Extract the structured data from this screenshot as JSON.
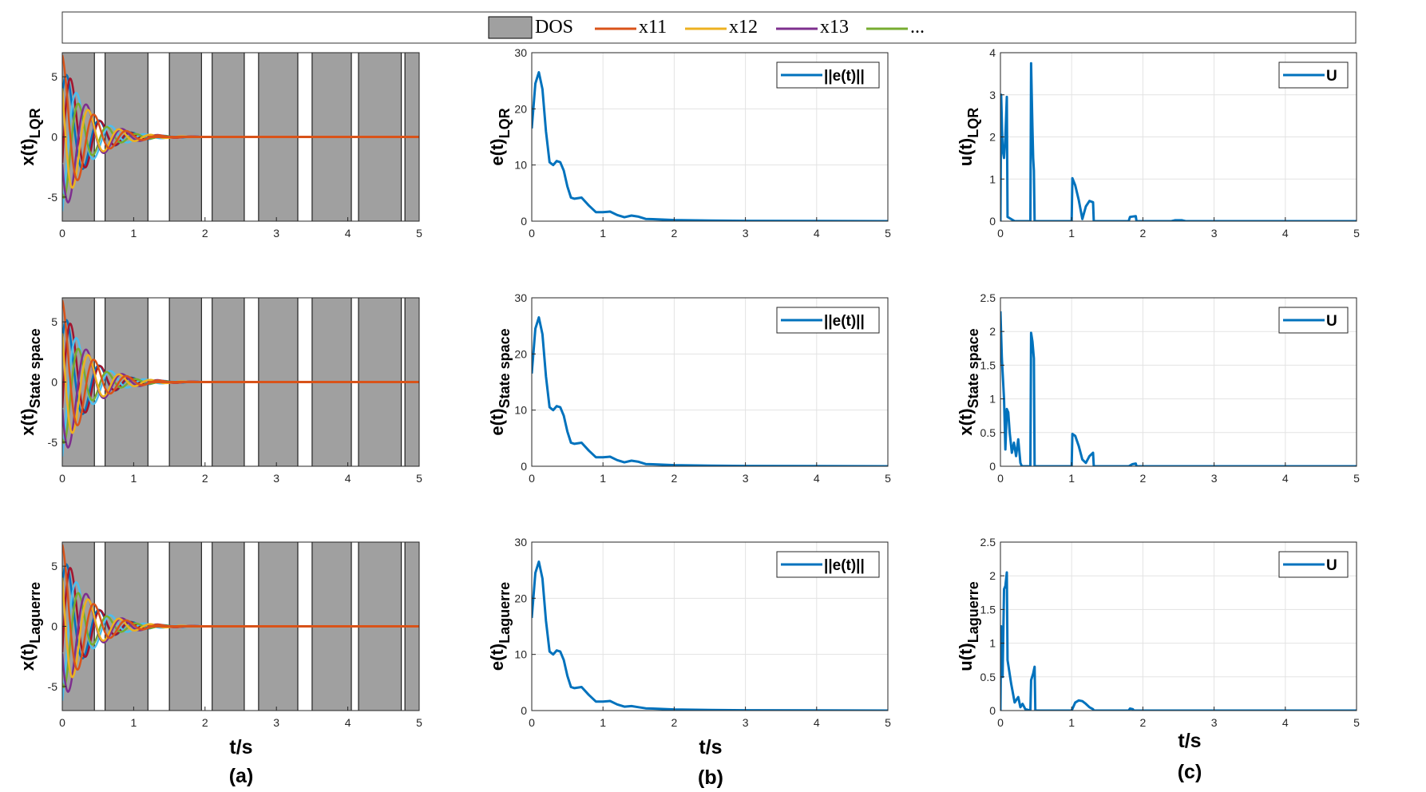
{
  "colors": {
    "dos": "#a0a0a0",
    "x11": "#d95319",
    "x12": "#edb120",
    "x13": "#7e2f8e",
    "x14": "#77ac30",
    "x15": "#4dbeee",
    "x16": "#a2142f",
    "x17": "#0072bd",
    "norm": "#0072bd",
    "grid": "#e3e3e3"
  },
  "legend": {
    "items": [
      {
        "label": "DOS",
        "kind": "patch"
      },
      {
        "label": "x11",
        "kind": "line",
        "color_key": "x11"
      },
      {
        "label": "x12",
        "kind": "line",
        "color_key": "x12"
      },
      {
        "label": "x13",
        "kind": "line",
        "color_key": "x13"
      },
      {
        "label": "...",
        "kind": "line",
        "color_key": "x14"
      }
    ]
  },
  "column_labels": {
    "x_label": "t/s",
    "a": "(a)",
    "b": "(b)",
    "c": "(c)"
  },
  "chart_data": [
    {
      "id": "x_lqr",
      "type": "line",
      "ylabel_main": "x(t)",
      "ylabel_sub": "LQR",
      "xlim": [
        0,
        5
      ],
      "ylim": [
        -7,
        7
      ],
      "xticks": [
        0,
        1,
        2,
        3,
        4,
        5
      ],
      "yticks": [
        -5,
        0,
        5
      ],
      "grid": false,
      "dos_windows": [
        [
          0,
          0.45
        ],
        [
          0.6,
          1.2
        ],
        [
          1.5,
          1.95
        ],
        [
          2.1,
          2.55
        ],
        [
          2.75,
          3.3
        ],
        [
          3.5,
          4.05
        ],
        [
          4.15,
          4.75
        ],
        [
          4.8,
          5.0
        ]
      ],
      "states": [
        {
          "name": "x11",
          "color_key": "x11",
          "amp": 6.8,
          "freq": 2.2,
          "phase": 0.0,
          "decay": 2.9
        },
        {
          "name": "x12",
          "color_key": "x12",
          "amp": 6.5,
          "freq": 2.3,
          "phase": 0.9,
          "decay": 2.9
        },
        {
          "name": "x13",
          "color_key": "x13",
          "amp": 7.0,
          "freq": 2.0,
          "phase": 1.9,
          "decay": 2.8
        },
        {
          "name": "x14",
          "color_key": "x14",
          "amp": 5.5,
          "freq": 2.5,
          "phase": 2.6,
          "decay": 3.0
        },
        {
          "name": "x15",
          "color_key": "x15",
          "amp": 6.6,
          "freq": 2.1,
          "phase": 3.5,
          "decay": 2.9
        },
        {
          "name": "x16",
          "color_key": "x16",
          "amp": 7.0,
          "freq": 2.4,
          "phase": 4.4,
          "decay": 3.1
        },
        {
          "name": "x17",
          "color_key": "x17",
          "amp": 6.2,
          "freq": 2.2,
          "phase": 5.3,
          "decay": 2.9
        }
      ]
    },
    {
      "id": "e_lqr",
      "type": "line",
      "ylabel_main": "e(t)",
      "ylabel_sub": "LQR",
      "legend_label": "||e(t)||",
      "xlim": [
        0,
        5
      ],
      "ylim": [
        0,
        30
      ],
      "xticks": [
        0,
        1,
        2,
        3,
        4,
        5
      ],
      "yticks": [
        0,
        10,
        20,
        30
      ],
      "grid": true,
      "x": [
        0,
        0.05,
        0.1,
        0.15,
        0.2,
        0.25,
        0.3,
        0.35,
        0.4,
        0.45,
        0.5,
        0.55,
        0.6,
        0.7,
        0.8,
        0.9,
        1.0,
        1.1,
        1.2,
        1.3,
        1.4,
        1.5,
        1.6,
        1.7,
        1.8,
        2.0,
        2.2,
        2.5,
        3.0,
        5.0
      ],
      "y": [
        16.5,
        24.5,
        26.5,
        23.5,
        16.0,
        10.5,
        10.0,
        10.7,
        10.5,
        9.0,
        6.2,
        4.2,
        4.0,
        4.2,
        2.8,
        1.6,
        1.6,
        1.7,
        1.1,
        0.7,
        1.0,
        0.8,
        0.4,
        0.35,
        0.3,
        0.2,
        0.15,
        0.1,
        0.05,
        0.0
      ]
    },
    {
      "id": "u_lqr",
      "type": "line",
      "ylabel_main": "u(t)",
      "ylabel_sub": "LQR",
      "legend_label": "U",
      "xlim": [
        0,
        5
      ],
      "ylim": [
        0,
        4
      ],
      "xticks": [
        0,
        1,
        2,
        3,
        4,
        5
      ],
      "yticks": [
        0,
        1,
        2,
        3,
        4
      ],
      "grid": true,
      "x": [
        0,
        0.01,
        0.03,
        0.05,
        0.07,
        0.09,
        0.1,
        0.15,
        0.2,
        0.42,
        0.43,
        0.44,
        0.45,
        0.46,
        0.47,
        0.48,
        0.5,
        1.0,
        1.01,
        1.05,
        1.1,
        1.15,
        1.2,
        1.25,
        1.3,
        1.31,
        1.8,
        1.82,
        1.9,
        1.91,
        2.4,
        2.45,
        2.55,
        2.6,
        5.0
      ],
      "y": [
        0,
        3.0,
        1.7,
        1.5,
        2.0,
        2.95,
        0.1,
        0.05,
        0.0,
        0.0,
        3.75,
        3.0,
        2.2,
        1.5,
        1.2,
        0.0,
        0.0,
        0.0,
        1.02,
        0.85,
        0.5,
        0.05,
        0.35,
        0.48,
        0.45,
        0.0,
        0.0,
        0.1,
        0.12,
        0.0,
        0.0,
        0.02,
        0.02,
        0.0,
        0.0
      ]
    },
    {
      "id": "x_ss",
      "type": "line",
      "ylabel_main": "x(t)",
      "ylabel_sub": "State space",
      "xlim": [
        0,
        5
      ],
      "ylim": [
        -7,
        7
      ],
      "xticks": [
        0,
        1,
        2,
        3,
        4,
        5
      ],
      "yticks": [
        -5,
        0,
        5
      ],
      "grid": false,
      "dos_windows": [
        [
          0,
          0.45
        ],
        [
          0.6,
          1.2
        ],
        [
          1.5,
          1.95
        ],
        [
          2.1,
          2.55
        ],
        [
          2.75,
          3.3
        ],
        [
          3.5,
          4.05
        ],
        [
          4.15,
          4.75
        ],
        [
          4.8,
          5.0
        ]
      ],
      "states": [
        {
          "name": "x11",
          "color_key": "x11",
          "amp": 6.8,
          "freq": 2.2,
          "phase": 0.0,
          "decay": 2.9
        },
        {
          "name": "x12",
          "color_key": "x12",
          "amp": 6.5,
          "freq": 2.3,
          "phase": 0.9,
          "decay": 2.9
        },
        {
          "name": "x13",
          "color_key": "x13",
          "amp": 7.0,
          "freq": 2.0,
          "phase": 1.9,
          "decay": 2.8
        },
        {
          "name": "x14",
          "color_key": "x14",
          "amp": 5.5,
          "freq": 2.5,
          "phase": 2.6,
          "decay": 3.0
        },
        {
          "name": "x15",
          "color_key": "x15",
          "amp": 6.6,
          "freq": 2.1,
          "phase": 3.5,
          "decay": 2.9
        },
        {
          "name": "x16",
          "color_key": "x16",
          "amp": 7.0,
          "freq": 2.4,
          "phase": 4.4,
          "decay": 3.1
        },
        {
          "name": "x17",
          "color_key": "x17",
          "amp": 6.2,
          "freq": 2.2,
          "phase": 5.3,
          "decay": 2.9
        }
      ]
    },
    {
      "id": "e_ss",
      "type": "line",
      "ylabel_main": "e(t)",
      "ylabel_sub": "State space",
      "legend_label": "||e(t)||",
      "xlim": [
        0,
        5
      ],
      "ylim": [
        0,
        30
      ],
      "xticks": [
        0,
        1,
        2,
        3,
        4,
        5
      ],
      "yticks": [
        0,
        10,
        20,
        30
      ],
      "grid": true,
      "x": [
        0,
        0.05,
        0.1,
        0.15,
        0.2,
        0.25,
        0.3,
        0.35,
        0.4,
        0.45,
        0.5,
        0.55,
        0.6,
        0.7,
        0.8,
        0.9,
        1.0,
        1.1,
        1.2,
        1.3,
        1.4,
        1.5,
        1.6,
        1.7,
        1.8,
        2.0,
        2.2,
        2.5,
        3.0,
        5.0
      ],
      "y": [
        16.5,
        24.5,
        26.5,
        23.5,
        16.0,
        10.5,
        10.0,
        10.7,
        10.5,
        9.0,
        6.2,
        4.2,
        4.0,
        4.2,
        2.8,
        1.6,
        1.6,
        1.7,
        1.1,
        0.7,
        1.0,
        0.8,
        0.4,
        0.35,
        0.3,
        0.2,
        0.15,
        0.1,
        0.05,
        0.0
      ]
    },
    {
      "id": "u_ss",
      "type": "line",
      "ylabel_main": "x(t)",
      "ylabel_sub": "State space",
      "legend_label": "U",
      "xlim": [
        0,
        5
      ],
      "ylim": [
        0,
        2.5
      ],
      "xticks": [
        0,
        1,
        2,
        3,
        4,
        5
      ],
      "yticks": [
        0,
        0.5,
        1,
        1.5,
        2,
        2.5
      ],
      "grid": true,
      "x": [
        0,
        0.02,
        0.05,
        0.07,
        0.09,
        0.11,
        0.13,
        0.16,
        0.19,
        0.22,
        0.25,
        0.28,
        0.3,
        0.42,
        0.43,
        0.45,
        0.47,
        0.48,
        0.5,
        1.0,
        1.01,
        1.05,
        1.1,
        1.15,
        1.2,
        1.25,
        1.3,
        1.31,
        1.8,
        1.85,
        1.9,
        1.91,
        5.0
      ],
      "y": [
        2.3,
        1.6,
        1.0,
        0.25,
        0.85,
        0.8,
        0.5,
        0.2,
        0.35,
        0.15,
        0.4,
        0.05,
        0.0,
        0.0,
        1.98,
        1.85,
        1.6,
        0.0,
        0.0,
        0.0,
        0.48,
        0.45,
        0.3,
        0.1,
        0.05,
        0.15,
        0.2,
        0.0,
        0.0,
        0.03,
        0.04,
        0.0,
        0.0
      ]
    },
    {
      "id": "x_lag",
      "type": "line",
      "ylabel_main": "x(t)",
      "ylabel_sub": "Laguerre",
      "xlim": [
        0,
        5
      ],
      "ylim": [
        -7,
        7
      ],
      "xticks": [
        0,
        1,
        2,
        3,
        4,
        5
      ],
      "yticks": [
        -5,
        0,
        5
      ],
      "grid": false,
      "dos_windows": [
        [
          0,
          0.45
        ],
        [
          0.6,
          1.2
        ],
        [
          1.5,
          1.95
        ],
        [
          2.1,
          2.55
        ],
        [
          2.75,
          3.3
        ],
        [
          3.5,
          4.05
        ],
        [
          4.15,
          4.75
        ],
        [
          4.8,
          5.0
        ]
      ],
      "states": [
        {
          "name": "x11",
          "color_key": "x11",
          "amp": 6.8,
          "freq": 2.2,
          "phase": 0.0,
          "decay": 2.9
        },
        {
          "name": "x12",
          "color_key": "x12",
          "amp": 6.5,
          "freq": 2.3,
          "phase": 0.9,
          "decay": 2.9
        },
        {
          "name": "x13",
          "color_key": "x13",
          "amp": 7.0,
          "freq": 2.0,
          "phase": 1.9,
          "decay": 2.8
        },
        {
          "name": "x14",
          "color_key": "x14",
          "amp": 5.5,
          "freq": 2.5,
          "phase": 2.6,
          "decay": 3.0
        },
        {
          "name": "x15",
          "color_key": "x15",
          "amp": 6.6,
          "freq": 2.1,
          "phase": 3.5,
          "decay": 2.9
        },
        {
          "name": "x16",
          "color_key": "x16",
          "amp": 7.0,
          "freq": 2.4,
          "phase": 4.4,
          "decay": 3.1
        },
        {
          "name": "x17",
          "color_key": "x17",
          "amp": 6.2,
          "freq": 2.2,
          "phase": 5.3,
          "decay": 2.9
        }
      ]
    },
    {
      "id": "e_lag",
      "type": "line",
      "ylabel_main": "e(t)",
      "ylabel_sub": "Laguerre",
      "legend_label": "||e(t)||",
      "xlim": [
        0,
        5
      ],
      "ylim": [
        0,
        30
      ],
      "xticks": [
        0,
        1,
        2,
        3,
        4,
        5
      ],
      "yticks": [
        0,
        10,
        20,
        30
      ],
      "grid": true,
      "x": [
        0,
        0.05,
        0.1,
        0.15,
        0.2,
        0.25,
        0.3,
        0.35,
        0.4,
        0.45,
        0.5,
        0.55,
        0.6,
        0.7,
        0.8,
        0.9,
        1.0,
        1.1,
        1.2,
        1.3,
        1.4,
        1.5,
        1.6,
        1.7,
        1.8,
        2.0,
        2.2,
        2.5,
        3.0,
        5.0
      ],
      "y": [
        16.5,
        24.5,
        26.5,
        23.5,
        16.0,
        10.5,
        10.0,
        10.7,
        10.5,
        9.0,
        6.2,
        4.2,
        4.0,
        4.2,
        2.8,
        1.6,
        1.6,
        1.7,
        1.1,
        0.7,
        0.8,
        0.6,
        0.4,
        0.35,
        0.3,
        0.2,
        0.15,
        0.1,
        0.05,
        0.0
      ]
    },
    {
      "id": "u_lag",
      "type": "line",
      "ylabel_main": "u(t)",
      "ylabel_sub": "Laguerre",
      "legend_label": "U",
      "xlim": [
        0,
        5
      ],
      "ylim": [
        0,
        2.5
      ],
      "xticks": [
        0,
        1,
        2,
        3,
        4,
        5
      ],
      "yticks": [
        0,
        0.5,
        1,
        1.5,
        2,
        2.5
      ],
      "grid": true,
      "x": [
        0,
        0.01,
        0.03,
        0.05,
        0.07,
        0.09,
        0.1,
        0.15,
        0.2,
        0.25,
        0.28,
        0.31,
        0.35,
        0.42,
        0.43,
        0.46,
        0.48,
        0.49,
        0.5,
        1.0,
        1.05,
        1.1,
        1.15,
        1.2,
        1.25,
        1.3,
        1.31,
        1.8,
        1.82,
        1.86,
        1.87,
        5.0
      ],
      "y": [
        0,
        1.25,
        0.5,
        1.8,
        1.85,
        2.05,
        0.75,
        0.4,
        0.12,
        0.2,
        0.05,
        0.1,
        0.02,
        0.0,
        0.45,
        0.55,
        0.65,
        0.0,
        0.0,
        0.0,
        0.12,
        0.15,
        0.14,
        0.1,
        0.05,
        0.02,
        0.0,
        0.0,
        0.03,
        0.02,
        0.0,
        0.0
      ]
    }
  ]
}
